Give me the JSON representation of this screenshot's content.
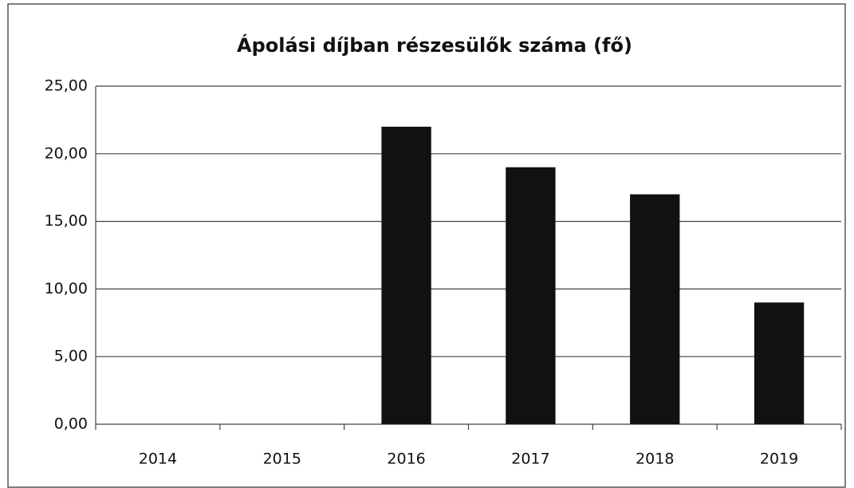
{
  "chart_data": {
    "type": "bar",
    "title": "Ápolási díjban részesülők száma (fő)",
    "categories": [
      "2014",
      "2015",
      "2016",
      "2017",
      "2018",
      "2019"
    ],
    "values": [
      0,
      0,
      22,
      19,
      17,
      9
    ],
    "color": "#111111",
    "ylim": [
      0,
      25
    ],
    "yticks": [
      {
        "value": 0,
        "label": "0,00"
      },
      {
        "value": 5,
        "label": "5,00"
      },
      {
        "value": 10,
        "label": "10,00"
      },
      {
        "value": 15,
        "label": "15,00"
      },
      {
        "value": 20,
        "label": "20,00"
      },
      {
        "value": 25,
        "label": "25,00"
      }
    ],
    "grid": true
  }
}
